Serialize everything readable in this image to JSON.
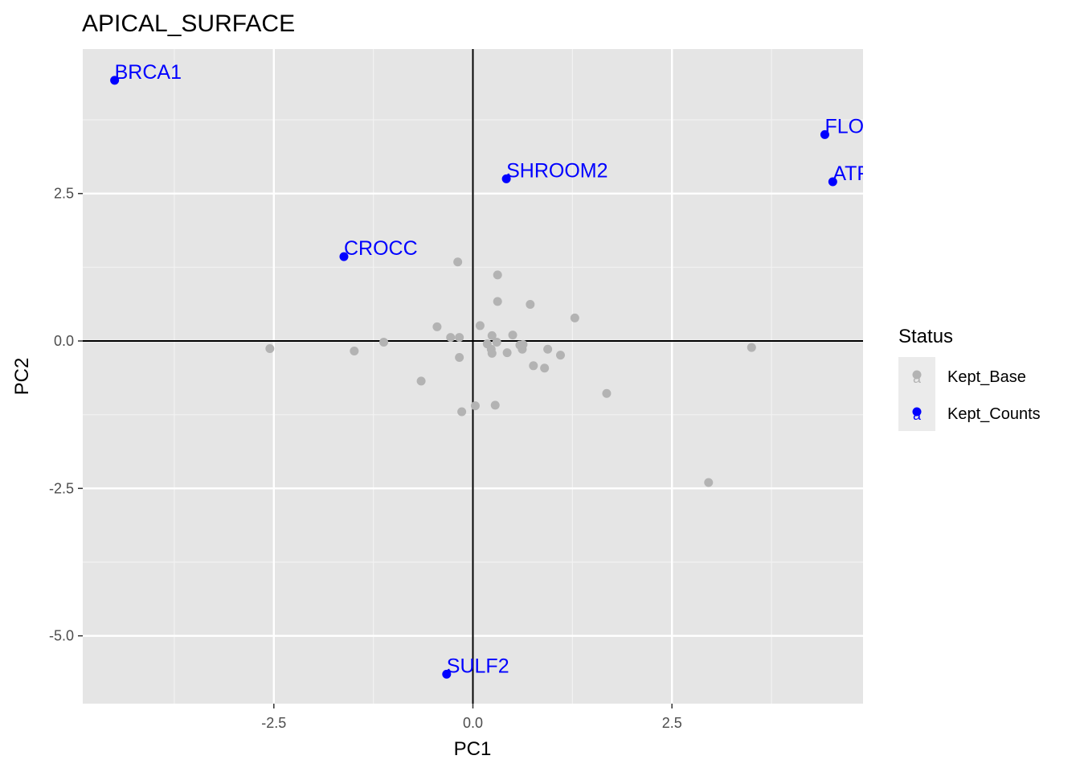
{
  "chart_data": {
    "type": "scatter",
    "title": "APICAL_SURFACE",
    "xlabel": "PC1",
    "ylabel": "PC2",
    "xlim": [
      -4.9,
      4.9
    ],
    "ylim": [
      -6.15,
      4.95
    ],
    "x_ticks": [
      -2.5,
      0.0,
      2.5
    ],
    "x_tick_labels": [
      "-2.5",
      "0.0",
      "2.5"
    ],
    "y_ticks": [
      -5.0,
      -2.5,
      0.0,
      2.5
    ],
    "y_tick_labels": [
      "-5.0",
      "-2.5",
      "0.0",
      "2.5"
    ],
    "grid": true,
    "reference_lines": {
      "x": 0,
      "y": 0
    },
    "legend": {
      "title": "Status",
      "placement": "right",
      "entries": [
        {
          "label": "Kept_Base",
          "color": "#b3b3b3",
          "glyph": "a"
        },
        {
          "label": "Kept_Counts",
          "color": "#0000ff",
          "glyph": "a"
        }
      ]
    },
    "series": [
      {
        "name": "Kept_Base",
        "color": "#b3b3b3",
        "points": [
          {
            "x": -2.55,
            "y": -0.13
          },
          {
            "x": -1.49,
            "y": -0.17
          },
          {
            "x": -1.12,
            "y": -0.02
          },
          {
            "x": -0.65,
            "y": -0.68
          },
          {
            "x": -0.45,
            "y": 0.24
          },
          {
            "x": -0.28,
            "y": 0.06
          },
          {
            "x": -0.19,
            "y": 1.34
          },
          {
            "x": -0.17,
            "y": 0.06
          },
          {
            "x": -0.17,
            "y": -0.28
          },
          {
            "x": -0.14,
            "y": -1.2
          },
          {
            "x": 0.03,
            "y": -1.1
          },
          {
            "x": 0.09,
            "y": 0.26
          },
          {
            "x": 0.18,
            "y": -0.05
          },
          {
            "x": 0.23,
            "y": -0.14
          },
          {
            "x": 0.24,
            "y": 0.09
          },
          {
            "x": 0.24,
            "y": -0.21
          },
          {
            "x": 0.28,
            "y": -1.09
          },
          {
            "x": 0.3,
            "y": -0.02
          },
          {
            "x": 0.31,
            "y": 1.12
          },
          {
            "x": 0.31,
            "y": 0.67
          },
          {
            "x": 0.43,
            "y": -0.2
          },
          {
            "x": 0.5,
            "y": 0.1
          },
          {
            "x": 0.59,
            "y": -0.07
          },
          {
            "x": 0.62,
            "y": -0.14
          },
          {
            "x": 0.63,
            "y": -0.06
          },
          {
            "x": 0.72,
            "y": 0.62
          },
          {
            "x": 0.76,
            "y": -0.42
          },
          {
            "x": 0.9,
            "y": -0.46
          },
          {
            "x": 0.94,
            "y": -0.14
          },
          {
            "x": 1.1,
            "y": -0.24
          },
          {
            "x": 1.28,
            "y": 0.39
          },
          {
            "x": 1.68,
            "y": -0.89
          },
          {
            "x": 2.96,
            "y": -2.4
          },
          {
            "x": 3.5,
            "y": -0.11
          }
        ]
      },
      {
        "name": "Kept_Counts",
        "color": "#0000ff",
        "points": [
          {
            "x": -4.5,
            "y": 4.42,
            "label": "BRCA1"
          },
          {
            "x": 4.42,
            "y": 3.5,
            "label": "FLO"
          },
          {
            "x": 0.42,
            "y": 2.75,
            "label": "SHROOM2"
          },
          {
            "x": 4.52,
            "y": 2.7,
            "label": "ATF"
          },
          {
            "x": -1.62,
            "y": 1.43,
            "label": "CROCC"
          },
          {
            "x": -0.33,
            "y": -5.65,
            "label": "SULF2"
          }
        ]
      }
    ]
  }
}
